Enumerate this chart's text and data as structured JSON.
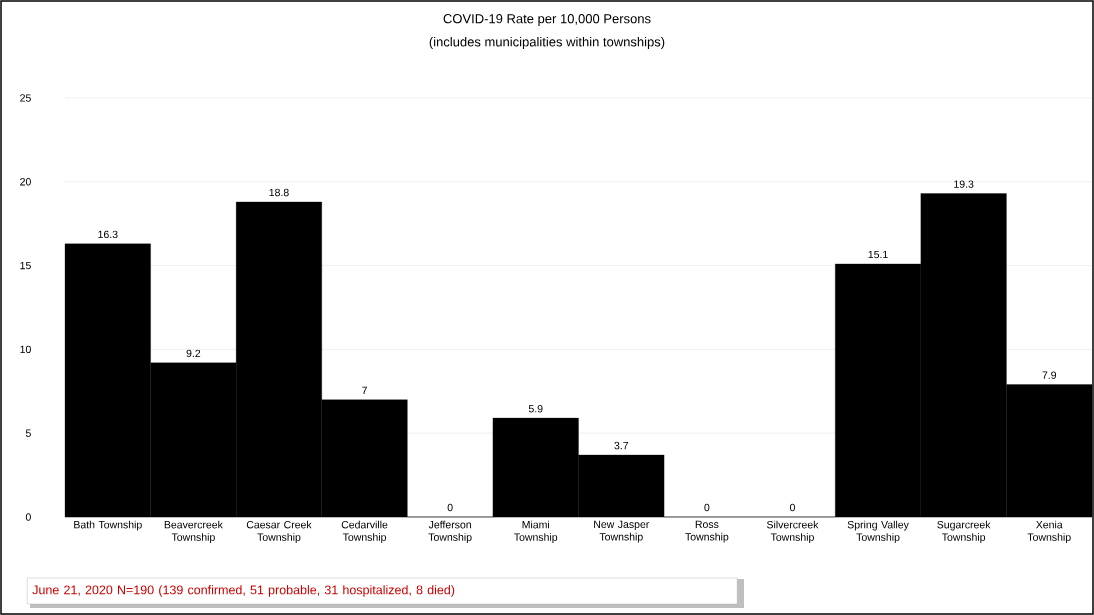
{
  "chart_data": {
    "type": "bar",
    "title": "COVID-19 Rate per 10,000 Persons",
    "subtitle": "(includes municipalities within townships)",
    "categories": [
      "Bath Township",
      "Beavercreek Township",
      "Caesar Creek Township",
      "Cedarville Township",
      "Jefferson Township",
      "Miami Township",
      "New Jasper Township",
      "Ross Township",
      "Silvercreek Township",
      "Spring Valley Township",
      "Sugarcreek Township",
      "Xenia Township"
    ],
    "values": [
      16.3,
      9.2,
      18.8,
      7,
      0,
      5.9,
      3.7,
      0,
      0,
      15.1,
      19.3,
      7.9
    ],
    "color": "#000000",
    "ylim": [
      0,
      25
    ],
    "yticks": [
      0,
      5,
      10,
      15,
      20,
      25
    ],
    "grid": "y",
    "data_labels": true,
    "annotations": [
      "June 21, 2020 N=190 (139 confirmed, 51 probable, 31 hospitalized, 8 died)"
    ]
  }
}
